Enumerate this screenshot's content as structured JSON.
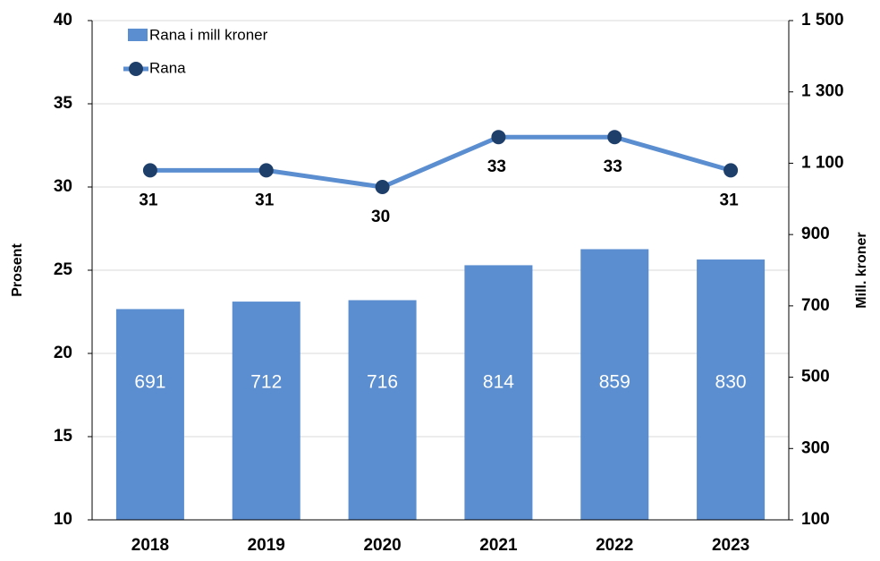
{
  "chart_data": {
    "type": "combo",
    "categories": [
      "2018",
      "2019",
      "2020",
      "2021",
      "2022",
      "2023"
    ],
    "series": [
      {
        "name": "Rana i mill kroner",
        "type": "bar",
        "axis": "y2",
        "color": "#5b8ed0",
        "values": [
          691,
          712,
          716,
          814,
          859,
          830
        ]
      },
      {
        "name": "Rana",
        "type": "line",
        "axis": "y",
        "color": "#5b8ed0",
        "marker_color": "#1f3f6b",
        "values": [
          31,
          31,
          30,
          33,
          33,
          31
        ]
      }
    ],
    "ylabel": "Prosent",
    "y2label": "Mill. kroner",
    "ylim": [
      10,
      40
    ],
    "yticks": [
      10,
      15,
      20,
      25,
      30,
      35,
      40
    ],
    "y2lim": [
      100,
      1500
    ],
    "y2ticks": [
      100,
      300,
      500,
      700,
      900,
      {
        "value": 1100,
        "label": "1 100"
      },
      {
        "value": 1300,
        "label": "1 300"
      },
      {
        "value": 1500,
        "label": "1 500"
      }
    ],
    "grid": true,
    "legend": "upper left"
  }
}
